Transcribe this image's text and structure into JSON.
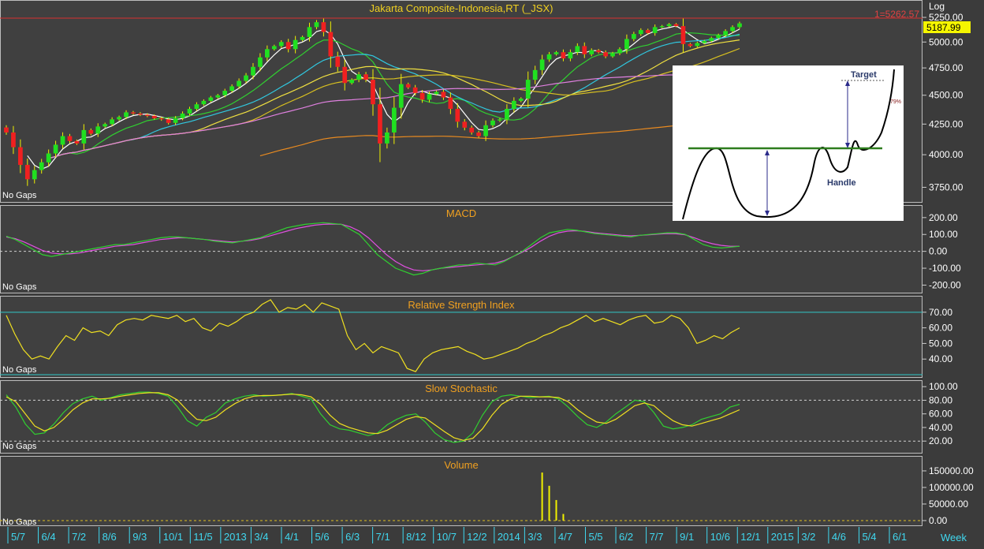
{
  "chart_data": {
    "type": "line",
    "title": "Jakarta Composite-Indonesia,RT (_JSX)",
    "scale_label": "Log",
    "last_price": "5187.99",
    "high_line": {
      "label": "1=5262.57",
      "value": 5262.57
    },
    "panel_note": "No Gaps",
    "x_labels": [
      "5/7",
      "6/4",
      "7/2",
      "8/6",
      "9/3",
      "10/1",
      "11/5",
      "2013",
      "3/4",
      "4/1",
      "5/6",
      "6/3",
      "7/1",
      "8/12",
      "10/7",
      "12/2",
      "2014",
      "3/3",
      "4/7",
      "5/5",
      "6/2",
      "7/7",
      "9/1",
      "10/6",
      "12/1",
      "2015",
      "3/2",
      "4/6",
      "5/4",
      "6/1"
    ],
    "x_unit_label": "Week",
    "price": {
      "yticks": [
        3750,
        4000,
        4250,
        4500,
        4750,
        5000,
        5250
      ],
      "ytick_labels": [
        "3750.00",
        "4000.00",
        "4250.00",
        "4500.00",
        "4750.00",
        "5000.00",
        "5250.00"
      ],
      "ylim": [
        3660,
        5400
      ],
      "weekly_close": [
        4180,
        4060,
        3920,
        3810,
        3880,
        3940,
        4010,
        4080,
        4150,
        4110,
        4090,
        4200,
        4170,
        4230,
        4250,
        4290,
        4310,
        4350,
        4340,
        4330,
        4320,
        4300,
        4290,
        4260,
        4300,
        4340,
        4380,
        4420,
        4450,
        4480,
        4500,
        4540,
        4580,
        4630,
        4680,
        4760,
        4850,
        4930,
        4960,
        5000,
        4930,
        5020,
        5050,
        5150,
        5200,
        5100,
        4860,
        4760,
        4610,
        4640,
        4690,
        4640,
        4420,
        4090,
        4180,
        4390,
        4600,
        4570,
        4520,
        4460,
        4510,
        4530,
        4480,
        4380,
        4270,
        4220,
        4180,
        4150,
        4240,
        4280,
        4290,
        4380,
        4450,
        4470,
        4640,
        4730,
        4830,
        4880,
        4900,
        4840,
        4900,
        4960,
        4880,
        4920,
        4900,
        4860,
        4890,
        4930,
        5030,
        5080,
        5120,
        5090,
        5150,
        5160,
        5180,
        5160,
        4980,
        4960,
        4990,
        5010,
        5040,
        5070,
        5110,
        5150,
        5187.99
      ]
    },
    "macd": {
      "title": "MACD",
      "yticks": [
        -200,
        -100,
        0,
        100,
        200
      ],
      "ytick_labels": [
        "-200.00",
        "-100.00",
        "0.00",
        "100.00",
        "200.00"
      ],
      "ylim": [
        -240,
        260
      ],
      "macd": [
        90,
        70,
        40,
        10,
        -20,
        -30,
        -20,
        -10,
        0,
        10,
        20,
        30,
        40,
        40,
        50,
        60,
        70,
        80,
        85,
        85,
        80,
        75,
        70,
        60,
        55,
        50,
        60,
        70,
        80,
        100,
        120,
        140,
        150,
        160,
        165,
        170,
        165,
        160,
        130,
        100,
        40,
        -20,
        -60,
        -100,
        -120,
        -140,
        -130,
        -110,
        -100,
        -90,
        -80,
        -80,
        -70,
        -75,
        -80,
        -60,
        -30,
        0,
        40,
        80,
        110,
        120,
        130,
        125,
        115,
        105,
        100,
        95,
        90,
        85,
        95,
        100,
        105,
        110,
        110,
        100,
        70,
        40,
        25,
        20,
        25,
        30
      ],
      "signal": [
        85,
        75,
        55,
        30,
        5,
        -10,
        -15,
        -15,
        -10,
        0,
        10,
        20,
        30,
        35,
        40,
        50,
        60,
        70,
        75,
        80,
        80,
        75,
        70,
        65,
        60,
        55,
        60,
        65,
        75,
        90,
        105,
        120,
        135,
        145,
        155,
        160,
        162,
        160,
        145,
        120,
        80,
        30,
        -20,
        -60,
        -90,
        -110,
        -115,
        -110,
        -100,
        -95,
        -90,
        -85,
        -80,
        -75,
        -70,
        -55,
        -30,
        -5,
        25,
        60,
        90,
        110,
        120,
        122,
        118,
        110,
        105,
        100,
        95,
        92,
        95,
        98,
        102,
        105,
        104,
        98,
        80,
        60,
        45,
        35,
        30,
        30
      ]
    },
    "rsi": {
      "title": "Relative Strength Index",
      "yticks": [
        40,
        50,
        60,
        70
      ],
      "ytick_labels": [
        "40.00",
        "50.00",
        "60.00",
        "70.00"
      ],
      "ylim": [
        29,
        79
      ],
      "guides": [
        70,
        30
      ],
      "values": [
        68,
        56,
        46,
        40,
        42,
        40,
        48,
        55,
        52,
        60,
        57,
        58,
        55,
        62,
        65,
        66,
        65,
        68,
        67,
        66,
        68,
        64,
        66,
        60,
        58,
        63,
        61,
        64,
        68,
        70,
        75,
        78,
        70,
        73,
        72,
        75,
        70,
        76,
        74,
        72,
        55,
        46,
        50,
        44,
        48,
        46,
        44,
        34,
        32,
        40,
        44,
        46,
        47,
        48,
        45,
        43,
        40,
        41,
        43,
        45,
        47,
        50,
        52,
        55,
        57,
        60,
        62,
        65,
        68,
        64,
        66,
        64,
        62,
        65,
        67,
        68,
        63,
        64,
        68,
        66,
        60,
        50,
        52,
        55,
        53,
        57,
        60
      ]
    },
    "stochastic": {
      "title": "Slow Stochastic",
      "yticks": [
        20,
        40,
        60,
        80,
        100
      ],
      "ytick_labels": [
        "20.00",
        "40.00",
        "60.00",
        "80.00",
        "100.00"
      ],
      "ylim": [
        4,
        106
      ],
      "guides": [
        80,
        20
      ],
      "k": [
        88,
        70,
        45,
        30,
        32,
        45,
        62,
        75,
        82,
        86,
        80,
        84,
        88,
        90,
        92,
        92,
        90,
        86,
        70,
        50,
        42,
        55,
        62,
        76,
        82,
        86,
        88,
        86,
        87,
        88,
        90,
        86,
        82,
        60,
        44,
        38,
        36,
        32,
        28,
        32,
        44,
        52,
        58,
        60,
        48,
        32,
        22,
        18,
        20,
        32,
        58,
        78,
        86,
        88,
        86,
        84,
        85,
        86,
        82,
        70,
        56,
        44,
        40,
        48,
        60,
        70,
        80,
        78,
        62,
        42,
        38,
        40,
        44,
        52,
        56,
        60,
        70,
        74
      ],
      "d": [
        85,
        78,
        60,
        42,
        35,
        40,
        52,
        66,
        76,
        82,
        82,
        83,
        86,
        88,
        90,
        91,
        91,
        88,
        80,
        65,
        52,
        50,
        55,
        66,
        75,
        82,
        86,
        87,
        87,
        88,
        89,
        88,
        85,
        74,
        58,
        46,
        40,
        36,
        32,
        31,
        36,
        44,
        52,
        56,
        54,
        44,
        34,
        25,
        21,
        24,
        38,
        58,
        74,
        82,
        86,
        86,
        85,
        85,
        84,
        78,
        66,
        56,
        48,
        46,
        52,
        62,
        72,
        76,
        72,
        60,
        50,
        44,
        42,
        46,
        50,
        54,
        60,
        66
      ]
    },
    "volume": {
      "title": "Volume",
      "yticks": [
        0,
        50000,
        100000,
        150000
      ],
      "ytick_labels": [
        "0.00",
        "50000.00",
        "100000.00",
        "150000.00"
      ],
      "ylim": [
        -12000,
        188000
      ],
      "bars": [
        {
          "week": 76,
          "value": 145000
        },
        {
          "week": 77,
          "value": 105000
        },
        {
          "week": 78,
          "value": 62000
        },
        {
          "week": 79,
          "value": 20000
        }
      ]
    },
    "inset": {
      "target_label": "Target",
      "handle_label": "Handle",
      "percent_label": "79%"
    }
  }
}
